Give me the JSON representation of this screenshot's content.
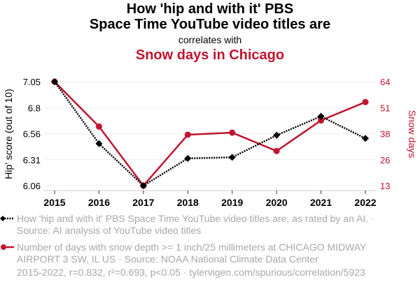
{
  "chart_data": {
    "type": "line",
    "title_line1": "How 'hip and with it' PBS",
    "title_line2": "Space Time YouTube video titles are",
    "subtitle": "correlates with",
    "title2": "Snow days in Chicago",
    "x": [
      "2015",
      "2016",
      "2017",
      "2018",
      "2019",
      "2020",
      "2021",
      "2022"
    ],
    "series": [
      {
        "name": "How 'hip and with it' PBS Space Time YouTube video titles are, as rated by an AI. · Source: AI analysis of YouTube video titles",
        "axis": "left",
        "color": "#000000",
        "values": [
          7.05,
          6.46,
          6.06,
          6.32,
          6.33,
          6.54,
          6.72,
          6.51
        ]
      },
      {
        "name": "Number of days with snow depth >= 1 inch/25 millimeters at CHICAGO MIDWAY AIRPORT 3 SW, IL US · Source: NOAA National Climate Data Center",
        "axis": "right",
        "color": "#c0152f",
        "values": [
          64,
          42,
          13,
          38,
          39,
          30,
          45,
          54
        ]
      }
    ],
    "ylabel": "Hip' score (out of 10)",
    "ylabel_right": "Snow days",
    "yticks": [
      "7.05",
      "6.8",
      "6.56",
      "6.31",
      "6.06"
    ],
    "yticks_right": [
      "64",
      "51",
      "38",
      "26",
      "13"
    ],
    "ylim": [
      6.06,
      7.05
    ],
    "ylim_right": [
      13,
      64
    ],
    "footer": "2015-2022, r=0.832, r²=0.693, p<0.05 · tylervigen.com/spurious/correlation/5923"
  }
}
